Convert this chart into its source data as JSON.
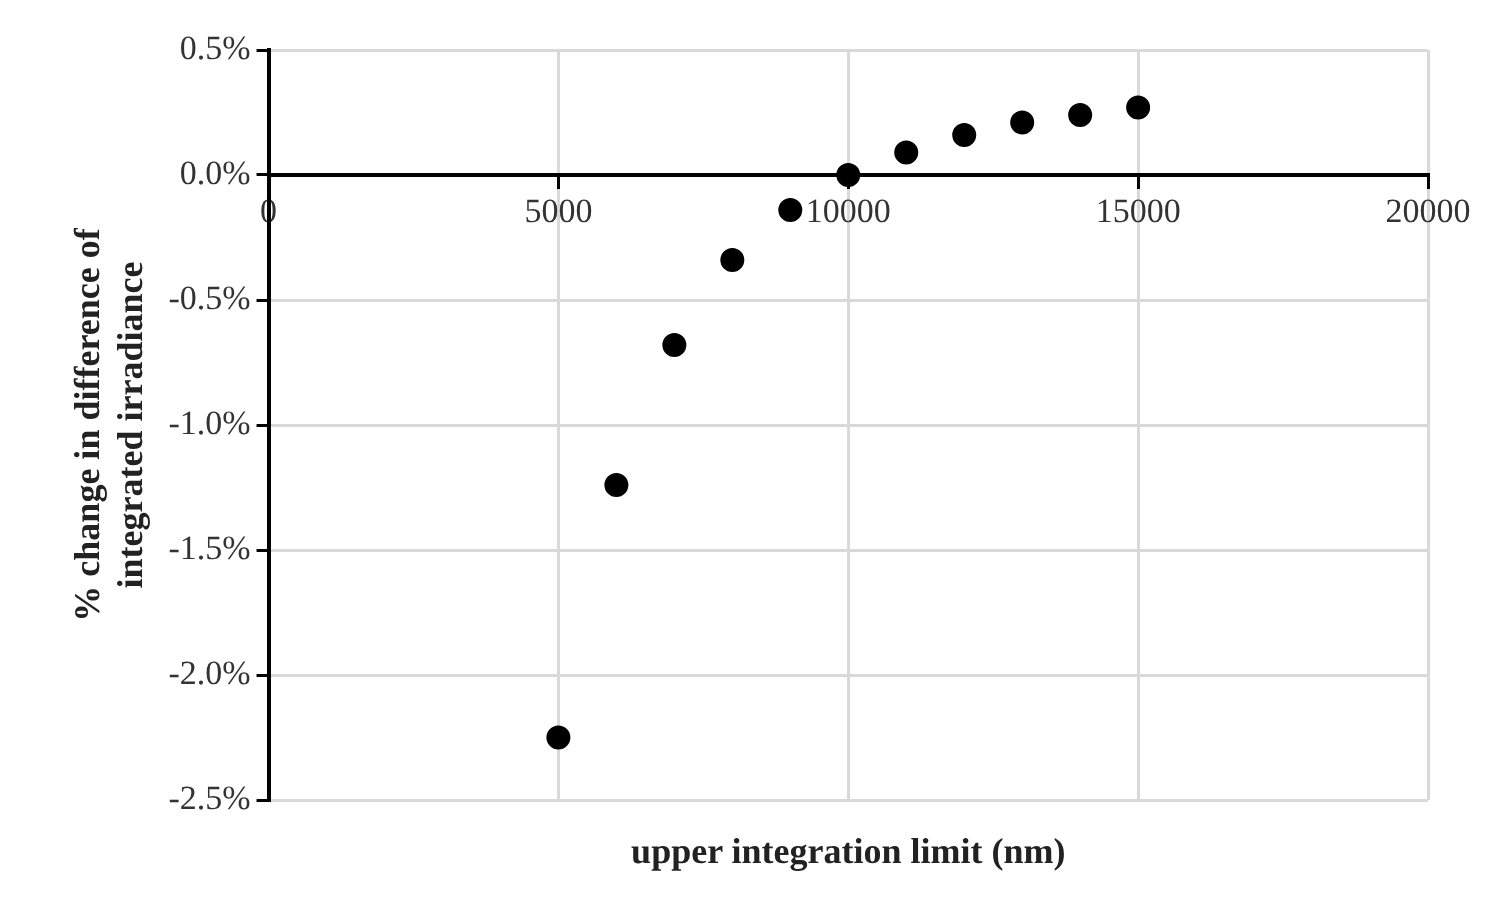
{
  "chart_data": {
    "type": "scatter",
    "xlabel": "upper integration limit (nm)",
    "ylabel": "% change in difference of\nintegrated irradiance",
    "x": [
      5000,
      6000,
      7000,
      8000,
      9000,
      10000,
      11000,
      12000,
      13000,
      14000,
      15000
    ],
    "values": [
      -2.25,
      -1.24,
      -0.68,
      -0.34,
      -0.14,
      0,
      0.09,
      0.16,
      0.21,
      0.24,
      0.27
    ],
    "color": "#000000",
    "marker": "circle",
    "xlim": [
      0,
      20000
    ],
    "xticks": [
      0,
      5000,
      10000,
      15000,
      20000
    ],
    "ylim": [
      -2.5,
      0.5
    ],
    "yticks": [
      {
        "value": -2.5,
        "label": "-2.5%"
      },
      {
        "value": -2,
        "label": "-2.0%"
      },
      {
        "value": -1.5,
        "label": "-1.5%"
      },
      {
        "value": -1,
        "label": "-1.0%"
      },
      {
        "value": -0.5,
        "label": "-0.5%"
      },
      {
        "value": 0,
        "label": "0.0%"
      },
      {
        "value": 0.5,
        "label": "0.5%"
      }
    ],
    "grid": true,
    "legend": false
  }
}
